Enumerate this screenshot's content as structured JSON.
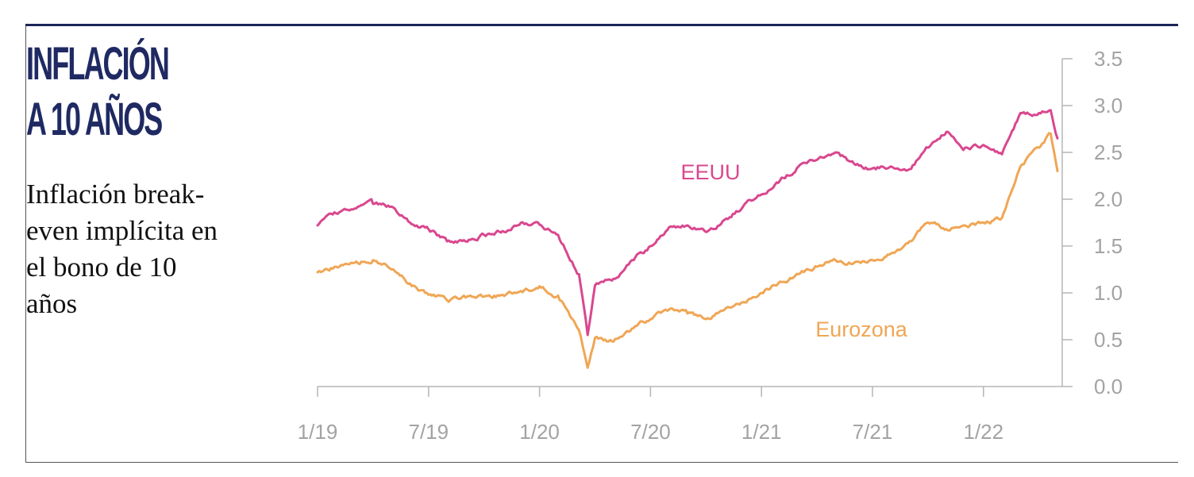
{
  "header": {
    "title_line1": "INFLACIÓN",
    "title_line2": "A 10 AÑOS",
    "subtitle": "Inflación break-even implícita en el bono de 10 años"
  },
  "colors": {
    "headline": "#1f2a63",
    "rule": "#1c2558",
    "eeuu": "#d9478f",
    "eurozona": "#f0a655",
    "axis": "#b5b5b5",
    "tick_text": "#a3a3a3"
  },
  "chart_data": {
    "type": "line",
    "title": "",
    "xlabel": "",
    "ylabel": "",
    "ylim": [
      0,
      3.5
    ],
    "yticks": [
      "0.0",
      "0.5",
      "1.0",
      "1.5",
      "2.0",
      "2.5",
      "3.0",
      "3.5"
    ],
    "xticks": [
      "1/19",
      "7/19",
      "1/20",
      "7/20",
      "1/21",
      "7/21",
      "1/22"
    ],
    "xrange": [
      "2019-01",
      "2022-05"
    ],
    "axis_side": "right",
    "grid": false,
    "legend": "inline labels",
    "series": [
      {
        "name": "EEUU",
        "color": "#d9478f",
        "x": [
          "2019-01",
          "2019-02",
          "2019-03",
          "2019-04",
          "2019-05",
          "2019-06",
          "2019-07",
          "2019-08",
          "2019-09",
          "2019-10",
          "2019-11",
          "2019-12",
          "2020-01",
          "2020-02",
          "2020-03-05",
          "2020-03-19",
          "2020-04",
          "2020-05",
          "2020-06",
          "2020-07",
          "2020-08",
          "2020-09",
          "2020-10",
          "2020-11",
          "2020-12",
          "2021-01",
          "2021-02",
          "2021-03",
          "2021-04",
          "2021-05",
          "2021-06",
          "2021-07",
          "2021-08",
          "2021-09",
          "2021-10",
          "2021-11",
          "2021-12",
          "2022-01",
          "2022-02",
          "2022-03",
          "2022-04",
          "2022-04-20",
          "2022-05"
        ],
        "values": [
          1.72,
          1.85,
          1.9,
          1.95,
          1.92,
          1.75,
          1.68,
          1.55,
          1.55,
          1.62,
          1.66,
          1.75,
          1.73,
          1.62,
          1.2,
          0.55,
          1.08,
          1.15,
          1.35,
          1.5,
          1.7,
          1.72,
          1.65,
          1.78,
          1.92,
          2.05,
          2.2,
          2.35,
          2.42,
          2.5,
          2.38,
          2.33,
          2.35,
          2.32,
          2.55,
          2.72,
          2.55,
          2.58,
          2.48,
          2.92,
          2.92,
          2.95,
          2.65
        ]
      },
      {
        "name": "Eurozona",
        "color": "#f0a655",
        "x": [
          "2019-01",
          "2019-02",
          "2019-03",
          "2019-04",
          "2019-05",
          "2019-06",
          "2019-07",
          "2019-08",
          "2019-09",
          "2019-10",
          "2019-11",
          "2019-12",
          "2020-01",
          "2020-02",
          "2020-03-05",
          "2020-03-19",
          "2020-04",
          "2020-05",
          "2020-06",
          "2020-07",
          "2020-08",
          "2020-09",
          "2020-10",
          "2020-11",
          "2020-12",
          "2021-01",
          "2021-02",
          "2021-03",
          "2021-04",
          "2021-05",
          "2021-06",
          "2021-07",
          "2021-08",
          "2021-09",
          "2021-10",
          "2021-11",
          "2021-12",
          "2022-01",
          "2022-02",
          "2022-03",
          "2022-04",
          "2022-04-20",
          "2022-05"
        ],
        "values": [
          1.22,
          1.28,
          1.32,
          1.35,
          1.25,
          1.1,
          0.98,
          0.92,
          0.95,
          0.96,
          0.98,
          1.02,
          1.07,
          0.97,
          0.6,
          0.2,
          0.52,
          0.48,
          0.62,
          0.72,
          0.82,
          0.78,
          0.72,
          0.82,
          0.9,
          1.0,
          1.12,
          1.2,
          1.28,
          1.35,
          1.32,
          1.35,
          1.42,
          1.55,
          1.75,
          1.68,
          1.72,
          1.75,
          1.8,
          2.35,
          2.55,
          2.7,
          2.3
        ]
      }
    ]
  }
}
